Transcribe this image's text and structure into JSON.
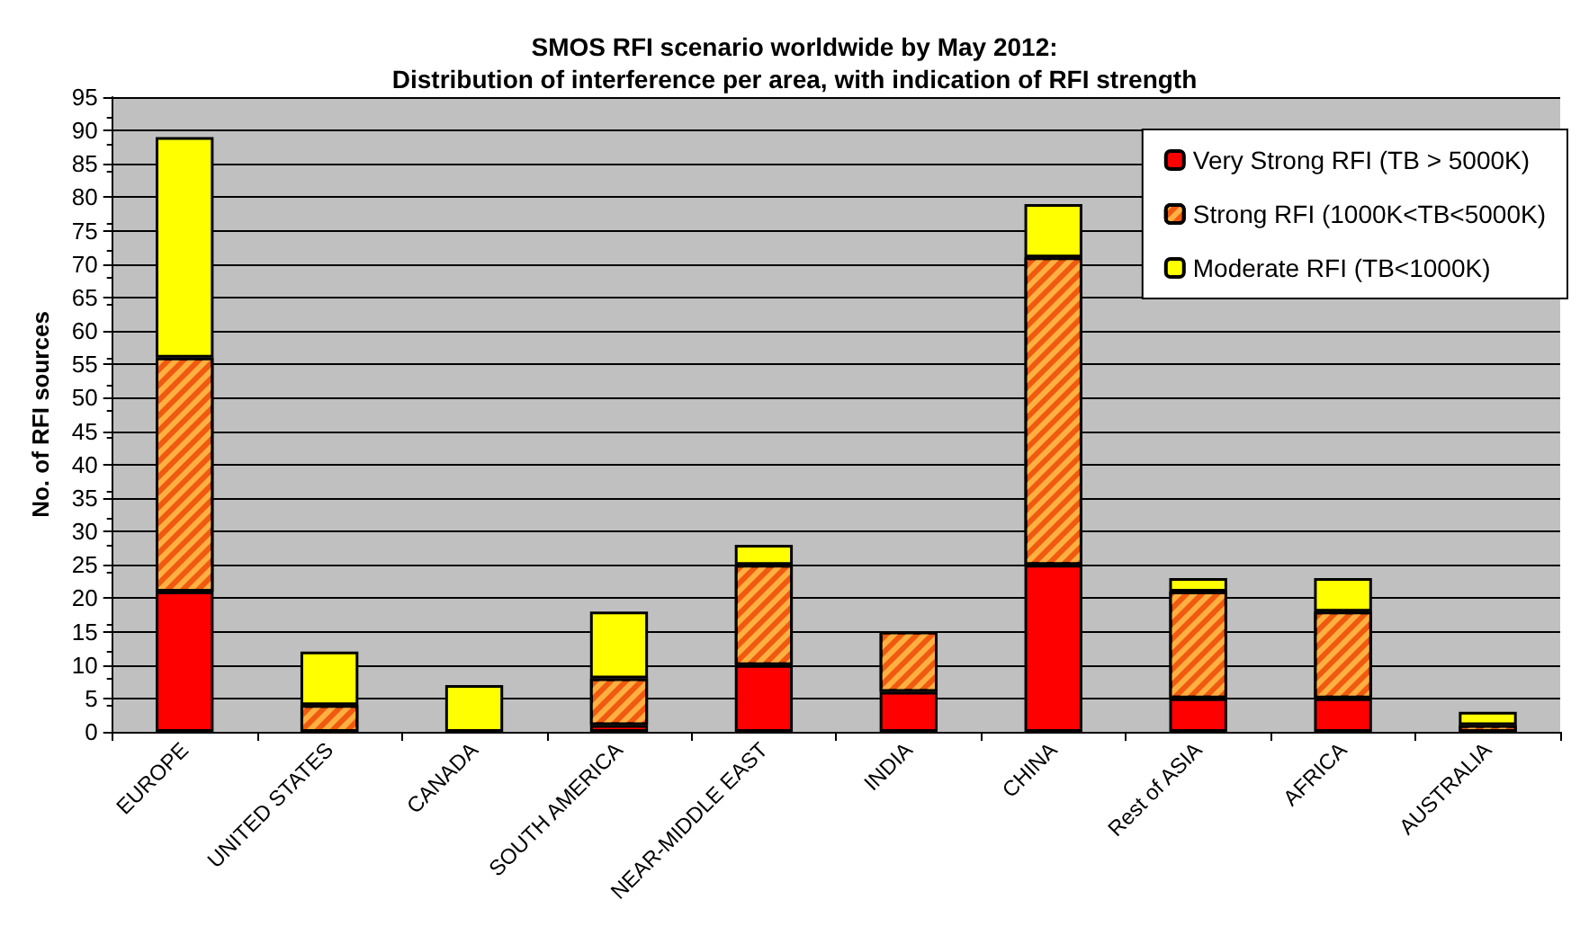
{
  "chart_data": {
    "type": "bar",
    "title": "SMOS RFI scenario worldwide by May 2012:\nDistribution of interference per area, with indication of RFI strength",
    "ylabel": "No. of RFI sources",
    "categories": [
      "EUROPE",
      "UNITED STATES",
      "CANADA",
      "SOUTH AMERICA",
      "NEAR-MIDDLE EAST",
      "INDIA",
      "CHINA",
      "Rest of ASIA",
      "AFRICA",
      "AUSTRALIA"
    ],
    "series": [
      {
        "name": "Very Strong RFI (TB > 5000K)",
        "color": "#ff0000",
        "values": [
          21,
          0,
          0,
          1,
          10,
          6,
          25,
          5,
          5,
          0
        ]
      },
      {
        "name": "Strong RFI (1000K<TB<5000K)",
        "color": "#f05a10",
        "values": [
          35,
          4,
          0,
          7,
          15,
          9,
          46,
          16,
          13,
          1
        ]
      },
      {
        "name": "Moderate RFI (TB<1000K)",
        "color": "#ffff00",
        "values": [
          33,
          8,
          7,
          10,
          3,
          0,
          8,
          2,
          5,
          2
        ]
      }
    ],
    "stacked": true,
    "ylim": [
      0,
      95
    ],
    "yticks": [
      0,
      5,
      10,
      15,
      20,
      25,
      30,
      35,
      40,
      45,
      50,
      55,
      60,
      65,
      70,
      75,
      80,
      85,
      90,
      95
    ],
    "grid": "y",
    "legend": "top right"
  }
}
